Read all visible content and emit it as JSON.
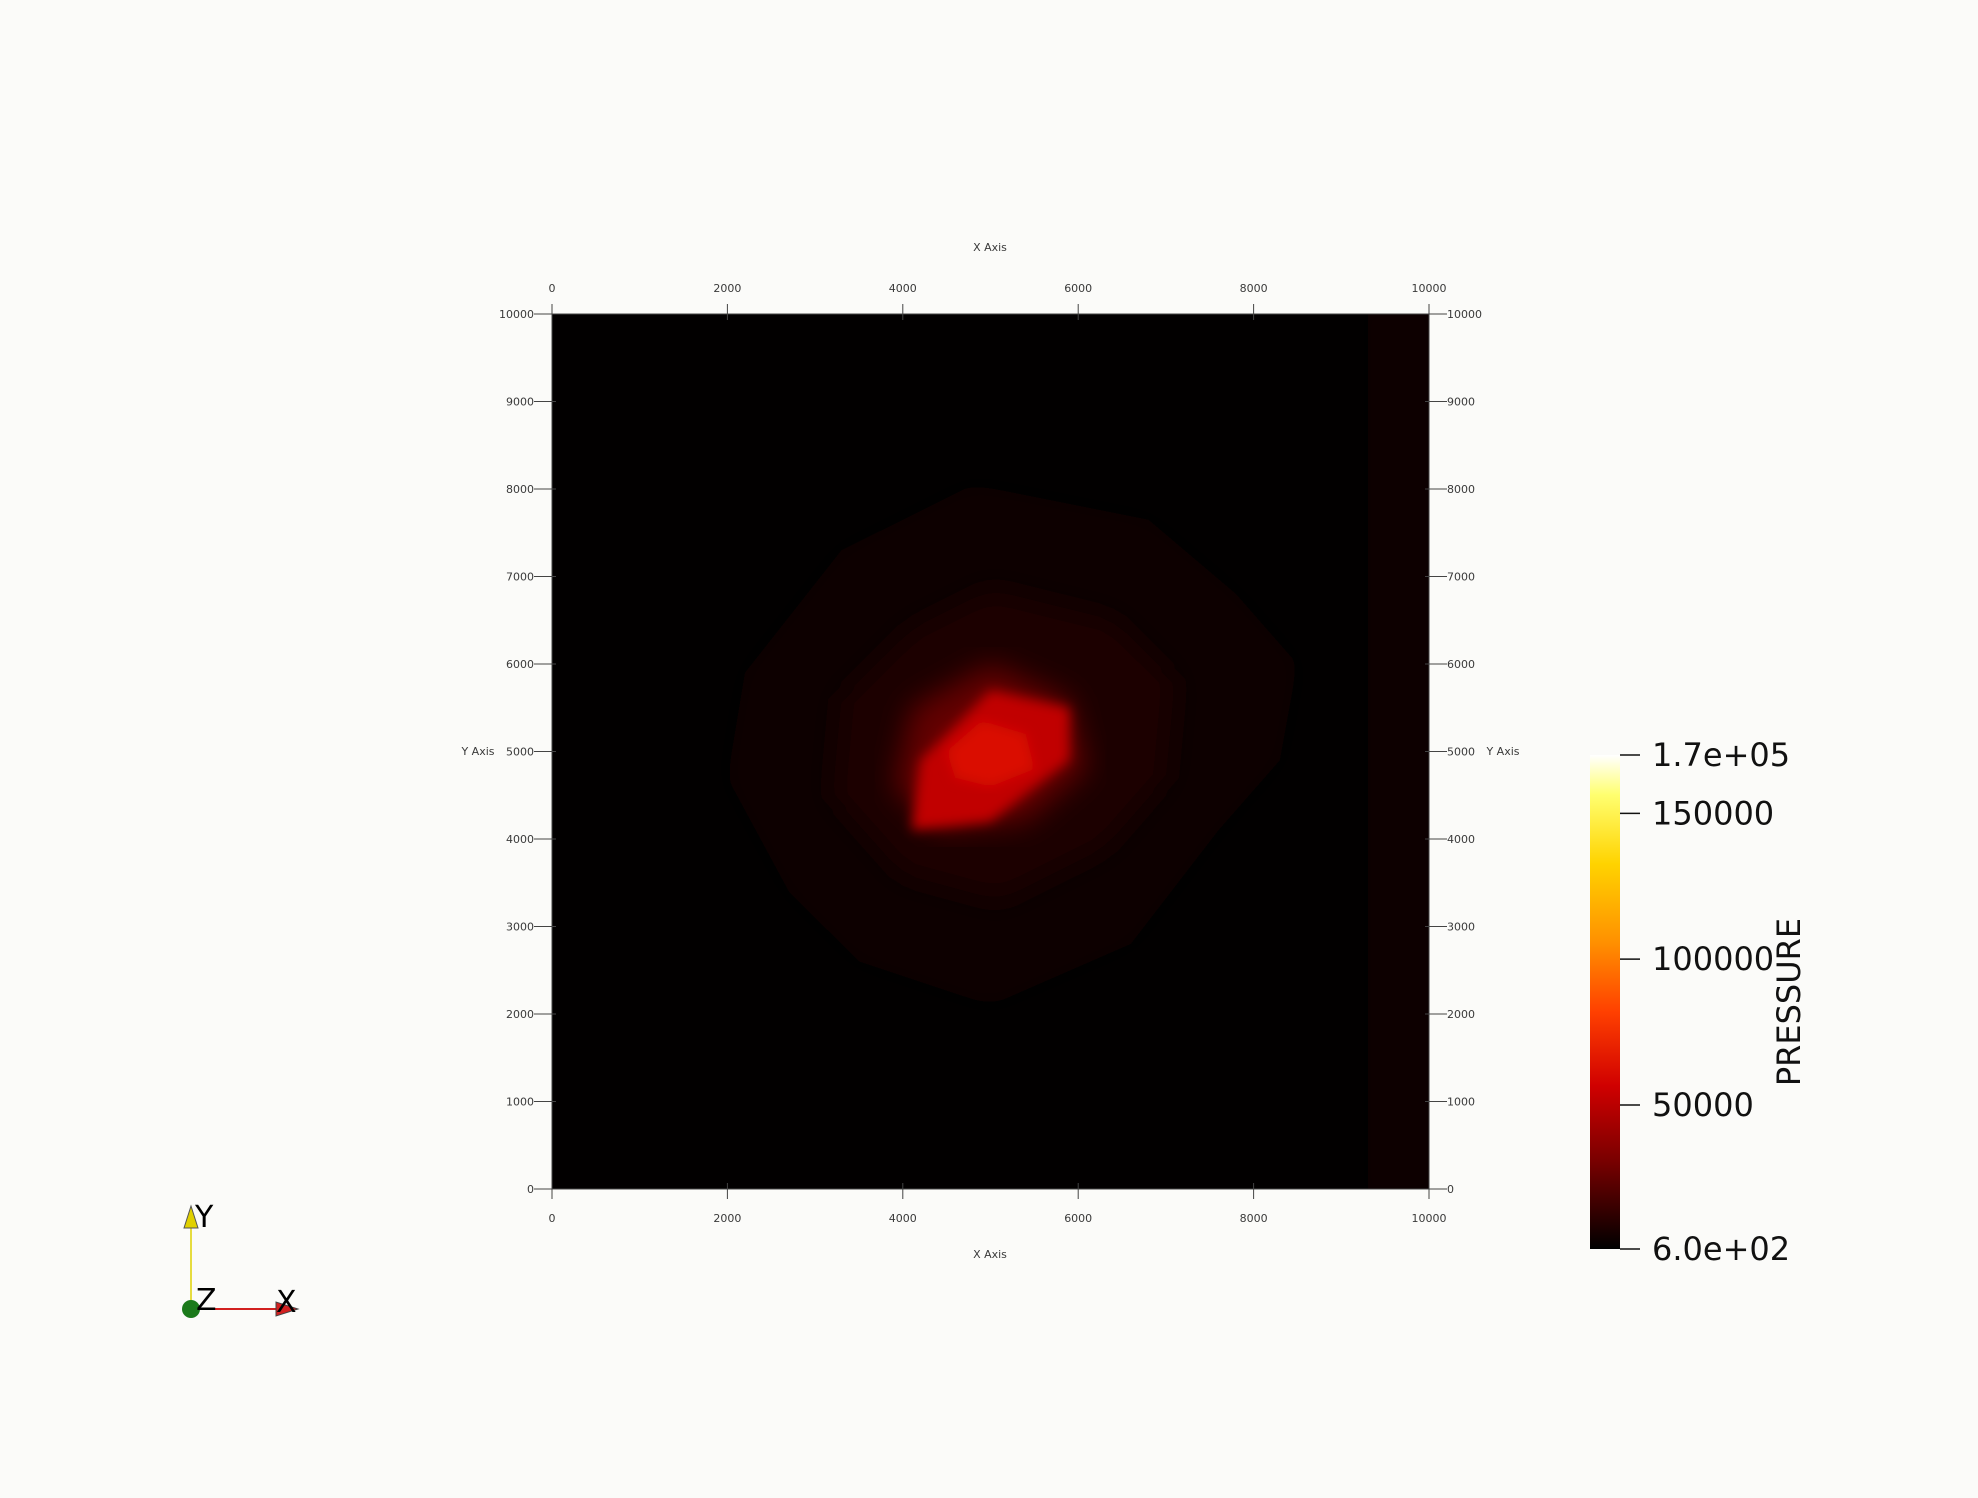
{
  "chart_data": {
    "type": "heatmap",
    "field_name": "PRESSURE",
    "x_axis": {
      "title": "X Axis",
      "range": [
        0,
        10000
      ],
      "ticks": [
        "0",
        "2000",
        "4000",
        "6000",
        "8000",
        "10000"
      ]
    },
    "y_axis": {
      "title": "Y Axis",
      "range": [
        0,
        10000
      ],
      "ticks": [
        "0",
        "1000",
        "2000",
        "3000",
        "4000",
        "5000",
        "6000",
        "7000",
        "8000",
        "9000",
        "10000"
      ]
    },
    "color_range": [
      600,
      170000
    ],
    "colorbar": {
      "title": "PRESSURE",
      "labels": [
        {
          "text": "1.7e+05",
          "value": 170000
        },
        {
          "text": "150000",
          "value": 150000
        },
        {
          "text": "100000",
          "value": 100000
        },
        {
          "text": "50000",
          "value": 50000
        },
        {
          "text": "6.0e+02",
          "value": 600
        }
      ],
      "colormap": "black-body"
    },
    "pressure_contours": [
      {
        "level": 3000,
        "points": [
          [
            4800,
            8050
          ],
          [
            6800,
            7650
          ],
          [
            7800,
            6800
          ],
          [
            8500,
            6000
          ],
          [
            8300,
            4900
          ],
          [
            7600,
            4100
          ],
          [
            6600,
            2800
          ],
          [
            5000,
            2100
          ],
          [
            3500,
            2600
          ],
          [
            2700,
            3400
          ],
          [
            2000,
            4700
          ],
          [
            2200,
            5900
          ],
          [
            3300,
            7300
          ]
        ]
      },
      {
        "level": 8000,
        "points": [
          [
            5000,
            6850
          ],
          [
            6400,
            6500
          ],
          [
            7100,
            5800
          ],
          [
            7000,
            4700
          ],
          [
            6300,
            3900
          ],
          [
            5100,
            3300
          ],
          [
            4000,
            3600
          ],
          [
            3200,
            4500
          ],
          [
            3300,
            5600
          ],
          [
            4100,
            6400
          ]
        ]
      },
      {
        "level": 25000,
        "points": [
          [
            5000,
            6000
          ],
          [
            5900,
            5600
          ],
          [
            6100,
            4800
          ],
          [
            5400,
            4200
          ],
          [
            4400,
            4100
          ],
          [
            3900,
            4600
          ],
          [
            4100,
            5500
          ]
        ]
      },
      {
        "level": 52000,
        "points": [
          [
            5000,
            5700
          ],
          [
            5900,
            5500
          ],
          [
            5900,
            4900
          ],
          [
            5000,
            4200
          ],
          [
            4100,
            4100
          ],
          [
            4200,
            4900
          ]
        ]
      },
      {
        "level": 62000,
        "points": [
          [
            4900,
            5350
          ],
          [
            5400,
            5200
          ],
          [
            5500,
            4800
          ],
          [
            5000,
            4600
          ],
          [
            4600,
            4700
          ],
          [
            4500,
            5000
          ]
        ]
      }
    ],
    "boundary_strip": {
      "x_from": 9300,
      "x_to": 10000,
      "level": 2500
    }
  },
  "orientation_triad": {
    "x": "X",
    "y": "Y",
    "z": "Z"
  },
  "colors": {
    "background": "#fbfbf9",
    "x_arrow": "#d22020",
    "y_arrow": "#e0d000",
    "z_sphere": "#1b7a1b"
  }
}
